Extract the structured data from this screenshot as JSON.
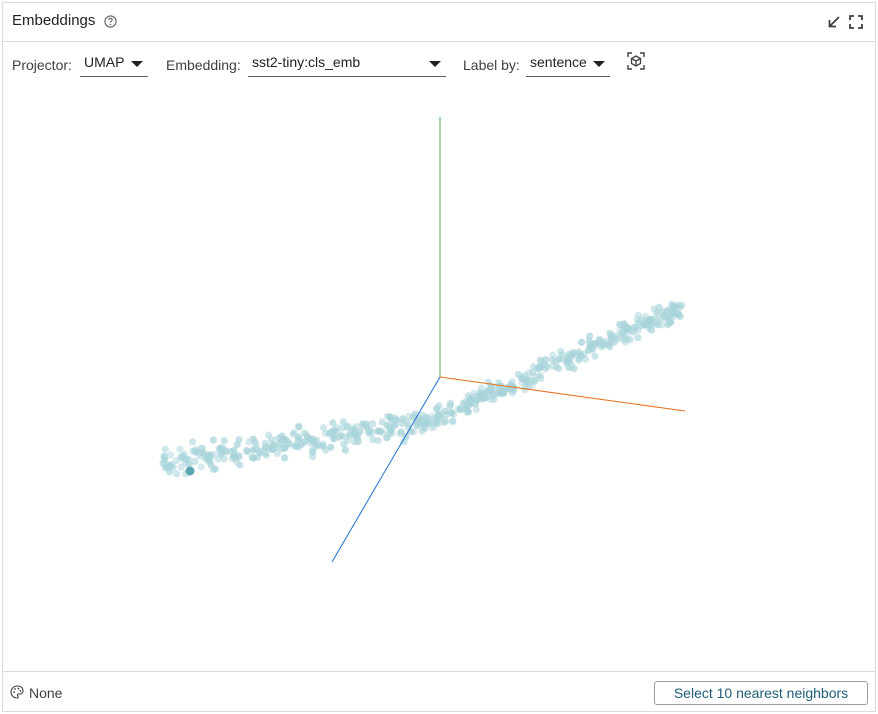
{
  "header": {
    "title": "Embeddings",
    "icons": [
      "help-icon",
      "minimize-icon",
      "fullscreen-icon"
    ]
  },
  "toolbar": {
    "projector_label": "Projector:",
    "projector_value": "UMAP",
    "embedding_label": "Embedding:",
    "embedding_value": "sst2-tiny:cls_emb",
    "labelby_label": "Label by:",
    "labelby_value": "sentence",
    "reset_icon": "reset-view-icon"
  },
  "plot": {
    "point_color": "#a8d4da",
    "selected_point_color": "#5aa7b0",
    "axis_colors": {
      "x": "#e8711a",
      "y": "#4caf50",
      "z": "#1e6fcf"
    }
  },
  "footer": {
    "color_by_value": "None",
    "palette_icon": "palette-icon",
    "nearest_neighbors_button": "Select 10 nearest neighbors"
  }
}
